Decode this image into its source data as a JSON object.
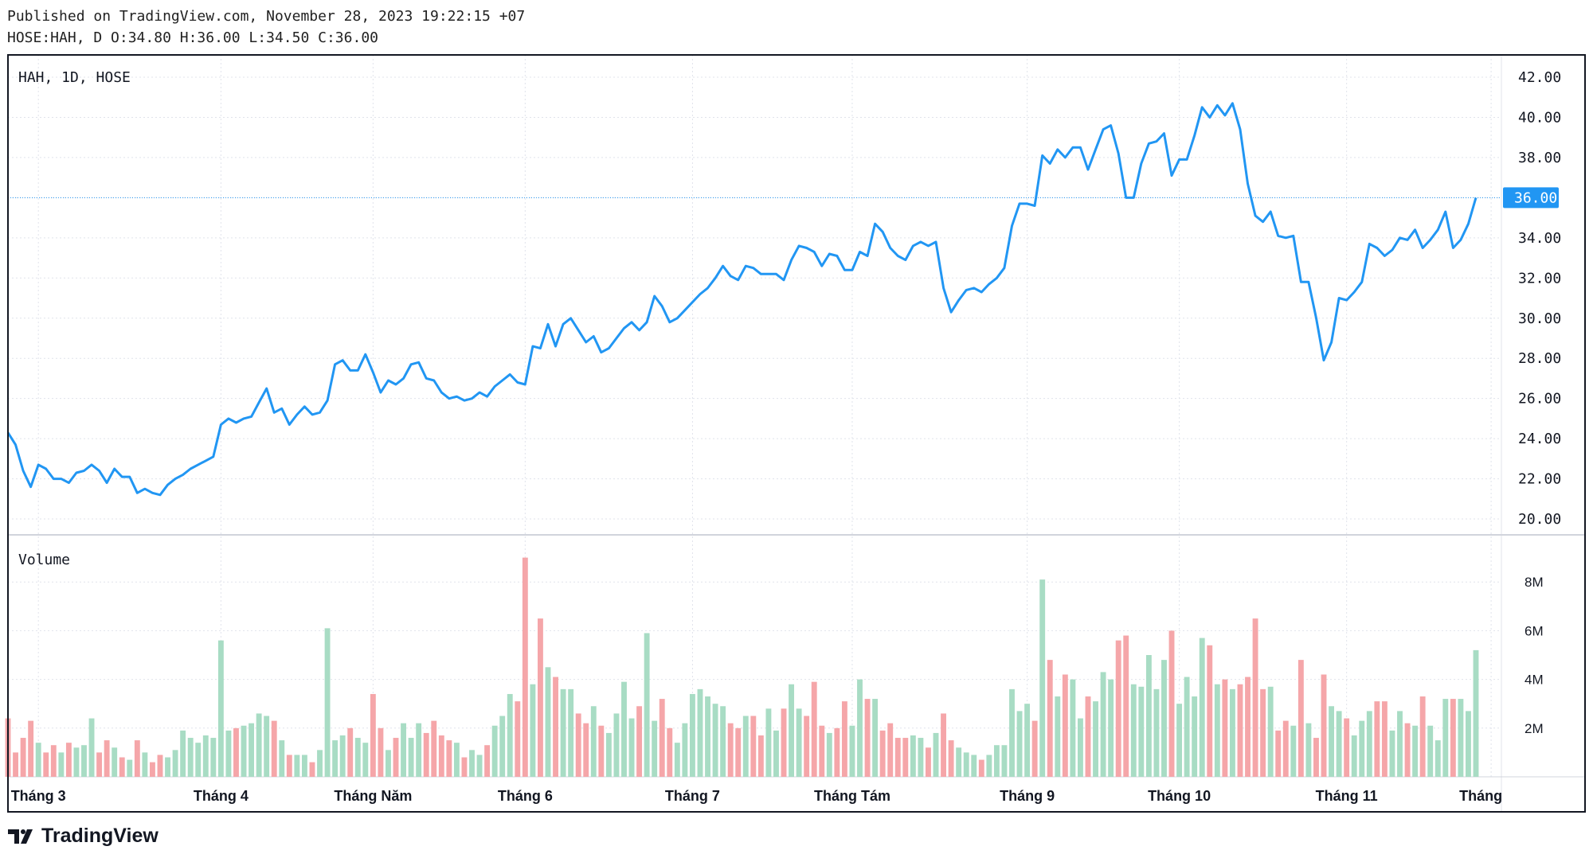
{
  "header": {
    "published": "Published on TradingView.com, November 28, 2023 19:22:15 +07",
    "ohlc": "HOSE:HAH, D O:34.80 H:36.00 L:34.50 C:36.00"
  },
  "brand": "TradingView",
  "colors": {
    "line": "#2196f3",
    "up": "#a8dcc4",
    "down": "#f5a6a9",
    "grid": "#e0e3eb",
    "label_bg": "#2196f3"
  },
  "chart_data": {
    "type": "line",
    "title": "HAH, 1D, HOSE",
    "volume_title": "Volume",
    "last_price_label": "36.00",
    "ylim": [
      19.5,
      42.8
    ],
    "yticks": [
      "20.00",
      "22.00",
      "24.00",
      "26.00",
      "28.00",
      "30.00",
      "32.00",
      "34.00",
      "36.00",
      "38.00",
      "40.00",
      "42.00"
    ],
    "volume_ylim_m": [
      0,
      9.5
    ],
    "volume_ticks": [
      {
        "v": 2,
        "label": "2M"
      },
      {
        "v": 4,
        "label": "4M"
      },
      {
        "v": 6,
        "label": "6M"
      },
      {
        "v": 8,
        "label": "8M"
      }
    ],
    "month_ticks": [
      {
        "index": 4,
        "label": "Tháng 3"
      },
      {
        "index": 28,
        "label": "Tháng 4"
      },
      {
        "index": 48,
        "label": "Tháng Năm"
      },
      {
        "index": 68,
        "label": "Tháng 6"
      },
      {
        "index": 90,
        "label": "Tháng 7"
      },
      {
        "index": 111,
        "label": "Tháng Tám"
      },
      {
        "index": 134,
        "label": "Tháng 9"
      },
      {
        "index": 154,
        "label": "Tháng 10"
      },
      {
        "index": 176,
        "label": "Tháng 11"
      },
      {
        "index": 195,
        "label": "Tháng Mười Hai"
      }
    ],
    "close": [
      24.3,
      23.7,
      22.4,
      21.6,
      22.7,
      22.5,
      22.0,
      22.0,
      21.8,
      22.3,
      22.4,
      22.7,
      22.4,
      21.8,
      22.5,
      22.1,
      22.1,
      21.3,
      21.5,
      21.3,
      21.2,
      21.7,
      22.0,
      22.2,
      22.5,
      22.7,
      22.9,
      23.1,
      24.7,
      25.0,
      24.8,
      25.0,
      25.1,
      25.8,
      26.5,
      25.3,
      25.5,
      24.7,
      25.2,
      25.6,
      25.2,
      25.3,
      25.9,
      27.7,
      27.9,
      27.4,
      27.4,
      28.2,
      27.3,
      26.3,
      26.9,
      26.7,
      27.0,
      27.7,
      27.8,
      27.0,
      26.9,
      26.3,
      26.0,
      26.1,
      25.9,
      26.0,
      26.3,
      26.1,
      26.6,
      26.9,
      27.2,
      26.8,
      26.7,
      28.6,
      28.5,
      29.7,
      28.6,
      29.7,
      30.0,
      29.4,
      28.8,
      29.1,
      28.3,
      28.5,
      29.0,
      29.5,
      29.8,
      29.4,
      29.8,
      31.1,
      30.6,
      29.8,
      30.0,
      30.4,
      30.8,
      31.2,
      31.5,
      32.0,
      32.6,
      32.1,
      31.9,
      32.6,
      32.5,
      32.2,
      32.2,
      32.2,
      31.9,
      32.9,
      33.6,
      33.5,
      33.3,
      32.6,
      33.2,
      33.1,
      32.4,
      32.4,
      33.3,
      33.1,
      34.7,
      34.3,
      33.5,
      33.1,
      32.9,
      33.6,
      33.8,
      33.6,
      33.8,
      31.5,
      30.3,
      30.9,
      31.4,
      31.5,
      31.3,
      31.7,
      32.0,
      32.5,
      34.6,
      35.7,
      35.7,
      35.6,
      38.1,
      37.7,
      38.4,
      38.0,
      38.5,
      38.5,
      37.4,
      38.4,
      39.4,
      39.6,
      38.2,
      36.0,
      36.0,
      37.7,
      38.7,
      38.8,
      39.2,
      37.1,
      37.9,
      37.9,
      39.1,
      40.5,
      40.0,
      40.6,
      40.1,
      40.7,
      39.4,
      36.7,
      35.1,
      34.8,
      35.3,
      34.1,
      34.0,
      34.1,
      31.8,
      31.8,
      30.0,
      27.9,
      28.8,
      31.0,
      30.9,
      31.3,
      31.8,
      33.7,
      33.5,
      33.1,
      33.4,
      34.0,
      33.9,
      34.4,
      33.5,
      33.9,
      34.4,
      35.3,
      33.5,
      33.9,
      34.7,
      36.0
    ],
    "volume_m": [
      2.4,
      1.0,
      1.6,
      2.3,
      1.4,
      1.0,
      1.3,
      1.0,
      1.4,
      1.2,
      1.3,
      2.4,
      1.0,
      1.5,
      1.2,
      0.8,
      0.7,
      1.5,
      1.0,
      0.6,
      0.9,
      0.8,
      1.1,
      1.9,
      1.6,
      1.4,
      1.7,
      1.6,
      5.6,
      1.9,
      2.0,
      2.1,
      2.2,
      2.6,
      2.5,
      2.3,
      1.5,
      0.9,
      0.9,
      0.9,
      0.6,
      1.1,
      6.1,
      1.5,
      1.7,
      2.0,
      1.6,
      1.4,
      3.4,
      2.0,
      1.1,
      1.6,
      2.2,
      1.6,
      2.2,
      1.8,
      2.3,
      1.7,
      1.5,
      1.4,
      0.8,
      1.1,
      0.9,
      1.3,
      2.1,
      2.5,
      3.4,
      3.1,
      9.0,
      3.8,
      6.5,
      4.5,
      4.1,
      3.6,
      3.6,
      2.6,
      2.2,
      2.9,
      2.1,
      1.8,
      2.6,
      3.9,
      2.4,
      2.9,
      5.9,
      2.3,
      3.2,
      2.0,
      1.4,
      2.2,
      3.4,
      3.6,
      3.3,
      3.0,
      2.9,
      2.2,
      2.0,
      2.5,
      2.5,
      1.7,
      2.8,
      1.9,
      2.8,
      3.8,
      2.8,
      2.5,
      3.9,
      2.1,
      1.8,
      2.0,
      3.1,
      2.1,
      4.0,
      3.2,
      3.2,
      1.9,
      2.2,
      1.6,
      1.6,
      1.7,
      1.6,
      1.2,
      1.8,
      2.6,
      1.5,
      1.2,
      1.0,
      0.9,
      0.7,
      0.9,
      1.3,
      1.3,
      3.6,
      2.7,
      3.0,
      2.3,
      8.1,
      4.8,
      3.3,
      4.2,
      4.0,
      2.4,
      3.3,
      3.1,
      4.3,
      4.0,
      5.6,
      5.8,
      3.8,
      3.7,
      5.0,
      3.6,
      4.8,
      6.0,
      3.0,
      4.1,
      3.3,
      5.7,
      5.4,
      3.8,
      4.0,
      3.6,
      3.8,
      4.1,
      6.5,
      3.6,
      3.7,
      1.9,
      2.3,
      2.1,
      4.8,
      2.2,
      1.6,
      4.2,
      2.9,
      2.7,
      2.4,
      1.7,
      2.3,
      2.7,
      3.1,
      3.1,
      1.9,
      2.7,
      2.2,
      2.1,
      3.3,
      2.1,
      1.5,
      3.2,
      3.2,
      3.2,
      2.7,
      5.2
    ]
  }
}
